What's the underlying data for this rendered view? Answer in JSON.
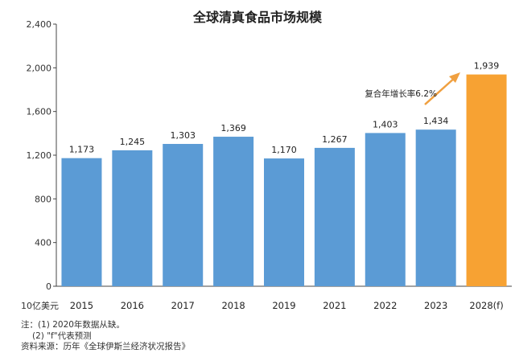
{
  "chart_data": {
    "type": "bar",
    "title": "全球清真食品市场规模",
    "ylabel": "10亿美元",
    "xlabel": "",
    "ylim": [
      0,
      2400
    ],
    "yticks": [
      0,
      400,
      800,
      1200,
      1600,
      2000,
      2400
    ],
    "ytick_labels": [
      "0",
      "400",
      "800",
      "1,200",
      "1,600",
      "2,000",
      "2,400"
    ],
    "categories": [
      "2015",
      "2016",
      "2017",
      "2018",
      "2019",
      "2021",
      "2022",
      "2023",
      "2028(f)"
    ],
    "values": [
      1173,
      1245,
      1303,
      1369,
      1170,
      1267,
      1403,
      1434,
      1939
    ],
    "value_labels": [
      "1,173",
      "1,245",
      "1,303",
      "1,369",
      "1,170",
      "1,267",
      "1,403",
      "1,434",
      "1,939"
    ],
    "forecast": [
      false,
      false,
      false,
      false,
      false,
      false,
      false,
      false,
      true
    ],
    "colors": {
      "actual": "#5b9bd5",
      "forecast": "#f7a233",
      "arrow": "#f0a040"
    },
    "annotation": "复合年增长率6.2%",
    "grid": false
  },
  "notes": {
    "note1": "注：(1) 2020年数据从缺。",
    "note2": "(2) \"f\"代表预测",
    "source": "资料来源：历年《全球伊斯兰经济状况报告》"
  }
}
